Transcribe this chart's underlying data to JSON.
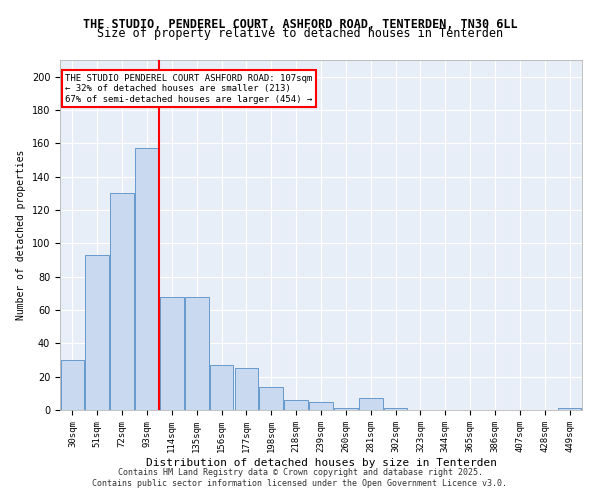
{
  "title_line1": "THE STUDIO, PENDEREL COURT, ASHFORD ROAD, TENTERDEN, TN30 6LL",
  "title_line2": "Size of property relative to detached houses in Tenterden",
  "xlabel": "Distribution of detached houses by size in Tenterden",
  "ylabel": "Number of detached properties",
  "categories": [
    "30sqm",
    "51sqm",
    "72sqm",
    "93sqm",
    "114sqm",
    "135sqm",
    "156sqm",
    "177sqm",
    "198sqm",
    "218sqm",
    "239sqm",
    "260sqm",
    "281sqm",
    "302sqm",
    "323sqm",
    "344sqm",
    "365sqm",
    "386sqm",
    "407sqm",
    "428sqm",
    "449sqm"
  ],
  "values": [
    30,
    93,
    130,
    157,
    68,
    68,
    27,
    25,
    14,
    6,
    5,
    1,
    7,
    1,
    0,
    0,
    0,
    0,
    0,
    0,
    1
  ],
  "bar_color": "#c9d9f0",
  "bar_edge_color": "#6699cc",
  "vline_x": 4,
  "vline_color": "red",
  "annotation_text": "THE STUDIO PENDEREL COURT ASHFORD ROAD: 107sqm\n← 32% of detached houses are smaller (213)\n67% of semi-detached houses are larger (454) →",
  "annotation_box_color": "white",
  "annotation_box_edge": "red",
  "ylim": [
    0,
    210
  ],
  "yticks": [
    0,
    20,
    40,
    60,
    80,
    100,
    120,
    140,
    160,
    180,
    200
  ],
  "background_color": "#e8eef7",
  "grid_color": "white",
  "footer_line1": "Contains HM Land Registry data © Crown copyright and database right 2025.",
  "footer_line2": "Contains public sector information licensed under the Open Government Licence v3.0."
}
